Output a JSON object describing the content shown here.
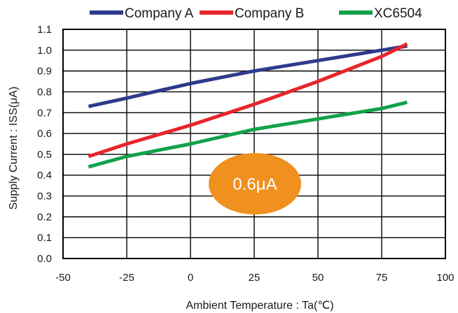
{
  "chart_data": {
    "type": "line",
    "title": "",
    "xlabel": "Ambient Temperature : Ta(℃)",
    "ylabel": "Supply Current : ISS(μA)",
    "xlim": [
      -50,
      100
    ],
    "ylim": [
      0.0,
      1.1
    ],
    "x_ticks": [
      "-50",
      "-25",
      "0",
      "25",
      "50",
      "75",
      "100"
    ],
    "y_ticks": [
      "0.0",
      "0.1",
      "0.2",
      "0.3",
      "0.4",
      "0.5",
      "0.6",
      "0.7",
      "0.8",
      "0.9",
      "1.0",
      "1.1"
    ],
    "grid": true,
    "legend_position": "top",
    "series": [
      {
        "name": "Company A",
        "color": "#2e3a8c",
        "x": [
          -40,
          -25,
          0,
          25,
          50,
          75,
          85
        ],
        "y": [
          0.73,
          0.77,
          0.84,
          0.9,
          0.95,
          1.0,
          1.02
        ]
      },
      {
        "name": "Company B",
        "color": "#e8252b",
        "x": [
          -40,
          -25,
          0,
          25,
          50,
          75,
          85
        ],
        "y": [
          0.49,
          0.55,
          0.64,
          0.74,
          0.85,
          0.97,
          1.03
        ]
      },
      {
        "name": "XC6504",
        "color": "#11a24a",
        "x": [
          -40,
          -25,
          0,
          25,
          50,
          75,
          85
        ],
        "y": [
          0.44,
          0.49,
          0.55,
          0.62,
          0.67,
          0.72,
          0.75
        ]
      }
    ],
    "annotation": {
      "text": "0.6μA",
      "color": "#f0901e",
      "text_color": "#ffffff"
    }
  }
}
